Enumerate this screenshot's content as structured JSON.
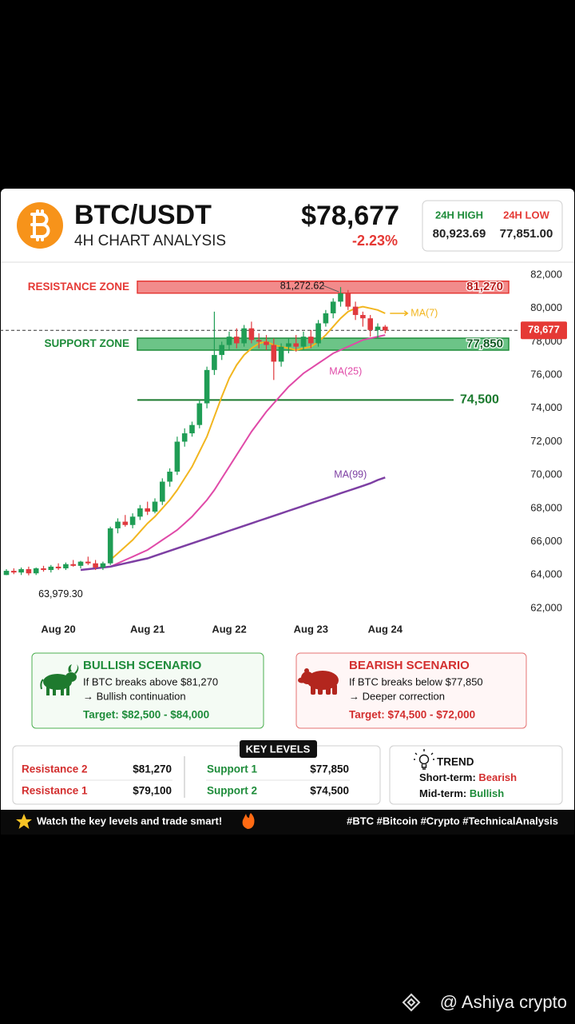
{
  "header": {
    "title": "BTC/USDT",
    "subtitle": "4H CHART ANALYSIS",
    "price": "$78,677",
    "change": "-2.23%",
    "high_label": "24H HIGH",
    "high": "80,923.69",
    "low_label": "24H LOW",
    "low": "77,851.00"
  },
  "chart_data": {
    "type": "candlestick",
    "categories": [
      null,
      null,
      null,
      null,
      null,
      null,
      null,
      "Aug 20",
      null,
      null,
      null,
      null,
      null,
      null,
      null,
      null,
      null,
      null,
      null,
      "Aug 21",
      null,
      null,
      null,
      null,
      null,
      null,
      null,
      null,
      null,
      null,
      "Aug 22",
      null,
      null,
      null,
      null,
      null,
      null,
      null,
      null,
      null,
      null,
      "Aug 23",
      null,
      null,
      null,
      null,
      null,
      null,
      null,
      null,
      null,
      "Aug 24"
    ],
    "open": [
      64000,
      64250,
      64150,
      64350,
      64100,
      64400,
      64300,
      64500,
      64400,
      64650,
      64550,
      64800,
      64700,
      64450,
      64700,
      66800,
      67200,
      67000,
      67500,
      68000,
      67800,
      68400,
      69600,
      70200,
      72000,
      72500,
      73000,
      74300,
      76300,
      77200,
      77800,
      78300,
      77900,
      78800,
      78100,
      78000,
      77800,
      76800,
      77700,
      77900,
      77700,
      78300,
      77900,
      79100,
      79700,
      80400,
      80900,
      80100,
      79600,
      79400,
      78700,
      78900
    ],
    "high": [
      64350,
      64400,
      64450,
      64500,
      64450,
      64550,
      64600,
      64700,
      64750,
      64900,
      64850,
      65100,
      64900,
      64800,
      66900,
      67400,
      67600,
      67700,
      68200,
      68400,
      68600,
      69800,
      70400,
      72300,
      72800,
      73200,
      74500,
      76500,
      79800,
      78000,
      78600,
      78800,
      79000,
      79200,
      78500,
      78400,
      78200,
      77900,
      78200,
      78400,
      78600,
      78700,
      79300,
      79900,
      80600,
      81272.62,
      81100,
      80400,
      79800,
      79600,
      79100,
      79000
    ],
    "low": [
      63990,
      64050,
      64000,
      63979.3,
      64000,
      64200,
      64150,
      64300,
      64300,
      64500,
      64400,
      64600,
      64300,
      64300,
      64600,
      66500,
      66900,
      66800,
      67300,
      67600,
      67700,
      68200,
      69300,
      70000,
      71700,
      72300,
      72800,
      74000,
      76000,
      76900,
      77500,
      77600,
      77700,
      77900,
      77600,
      77500,
      75700,
      76500,
      77300,
      77400,
      77500,
      77600,
      77700,
      78900,
      79400,
      80100,
      79900,
      79300,
      78900,
      78300,
      78200,
      78500
    ],
    "close": [
      64250,
      64150,
      64350,
      64100,
      64400,
      64300,
      64500,
      64400,
      64650,
      64550,
      64800,
      64700,
      64450,
      64700,
      66800,
      67200,
      67000,
      67500,
      68000,
      67800,
      68400,
      69600,
      70200,
      72000,
      72500,
      73000,
      74300,
      76300,
      77200,
      77800,
      78300,
      77900,
      78800,
      78100,
      78000,
      77800,
      76800,
      77700,
      77900,
      77700,
      78300,
      77900,
      79100,
      79700,
      80400,
      80900,
      80100,
      79600,
      79400,
      78700,
      78900,
      78677
    ],
    "up_color": "#1f9d55",
    "down_color": "#e0393e",
    "lines": [
      {
        "name": "MA(7)",
        "color": "#f2b61f",
        "values": [
          null,
          null,
          null,
          null,
          null,
          null,
          null,
          null,
          null,
          null,
          null,
          null,
          null,
          null,
          64900,
          65300,
          65700,
          66100,
          66600,
          67100,
          67500,
          68000,
          68500,
          69100,
          69800,
          70500,
          71400,
          72300,
          73500,
          74700,
          75800,
          76600,
          77200,
          77600,
          77900,
          78000,
          77800,
          77700,
          77600,
          77500,
          77600,
          77700,
          78000,
          78400,
          78900,
          79400,
          79800,
          80000,
          80100,
          80000,
          79900,
          79700
        ]
      },
      {
        "name": "MA(25)",
        "color": "#e04aa8",
        "values": [
          null,
          null,
          null,
          null,
          null,
          null,
          null,
          null,
          null,
          null,
          null,
          null,
          null,
          null,
          64500,
          64700,
          64900,
          65100,
          65300,
          65500,
          65800,
          66100,
          66400,
          66700,
          67100,
          67500,
          68000,
          68500,
          69100,
          69800,
          70500,
          71200,
          71900,
          72600,
          73200,
          73800,
          74300,
          74800,
          75300,
          75700,
          76100,
          76400,
          76700,
          77000,
          77300,
          77500,
          77700,
          77900,
          78100,
          78200,
          78300,
          78400
        ]
      },
      {
        "name": "MA(99)",
        "color": "#7d3fa3",
        "values": [
          null,
          null,
          null,
          null,
          null,
          null,
          null,
          null,
          null,
          null,
          64300,
          64350,
          64400,
          64450,
          64500,
          64600,
          64700,
          64800,
          64900,
          65000,
          65150,
          65300,
          65450,
          65600,
          65750,
          65900,
          66050,
          66200,
          66350,
          66500,
          66650,
          66800,
          66950,
          67100,
          67250,
          67400,
          67550,
          67700,
          67850,
          68000,
          68150,
          68300,
          68450,
          68600,
          68750,
          68900,
          69050,
          69200,
          69350,
          69500,
          69700,
          69850
        ]
      }
    ],
    "zones": [
      {
        "name": "RESISTANCE ZONE",
        "value": 81270,
        "label": "81,270",
        "color": "#e53935",
        "fill": "#f28b8b"
      },
      {
        "name": "SUPPORT ZONE",
        "value": 77850,
        "label": "77,850",
        "color": "#1e8c3a",
        "fill": "#6cc487"
      }
    ],
    "level_line": {
      "value": 74500,
      "label": "74,500",
      "color": "#1b7a2e"
    },
    "current_price": {
      "value": 78677,
      "label": "78,677",
      "color": "#e53935"
    },
    "high_label": {
      "value": 81272.62,
      "label": "81,272.62"
    },
    "low_label": {
      "value": 63979.3,
      "label": "63,979.30"
    },
    "ylim": [
      62000,
      82000
    ],
    "yticks": [
      {
        "value": 62000,
        "label": "62,000"
      },
      {
        "value": 64000,
        "label": "64,000"
      },
      {
        "value": 66000,
        "label": "66,000"
      },
      {
        "value": 68000,
        "label": "68,000"
      },
      {
        "value": 70000,
        "label": "70,000"
      },
      {
        "value": 72000,
        "label": "72,000"
      },
      {
        "value": 74000,
        "label": "74,000"
      },
      {
        "value": 76000,
        "label": "76,000"
      },
      {
        "value": 78000,
        "label": "78,000"
      },
      {
        "value": 80000,
        "label": "80,000"
      },
      {
        "value": 82000,
        "label": "82,000"
      }
    ]
  },
  "bullish": {
    "title": "BULLISH SCENARIO",
    "line1": "If BTC breaks above $81,270",
    "line2": "→ Bullish continuation",
    "target": "Target: $82,500 - $84,000"
  },
  "bearish": {
    "title": "BEARISH SCENARIO",
    "line1": "If BTC breaks below $77,850",
    "line2": "→ Deeper correction",
    "target": "Target: $74,500 - $72,000"
  },
  "key_levels": {
    "title": "KEY LEVELS",
    "rows": [
      [
        "Resistance 2",
        "$81,270"
      ],
      [
        "Resistance 1",
        "$79,100"
      ],
      [
        "Support 1",
        "$77,850"
      ],
      [
        "Support 2",
        "$74,500"
      ]
    ]
  },
  "trend": {
    "title": "TREND",
    "short_label": "Short-term:",
    "short_value": "Bearish",
    "mid_label": "Mid-term:",
    "mid_value": "Bullish"
  },
  "footer": {
    "left": "Watch the key levels and trade smart!",
    "right": "#BTC #Bitcoin #Crypto #TechnicalAnalysis"
  },
  "watermark": "@ Ashiya crypto"
}
